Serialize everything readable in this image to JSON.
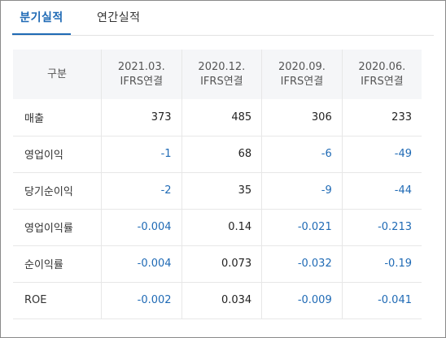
{
  "tabs": [
    {
      "label": "분기실적",
      "active": true
    },
    {
      "label": "연간실적",
      "active": false
    }
  ],
  "table": {
    "header_label": "구분",
    "columns": [
      {
        "period": "2021.03.",
        "basis": "IFRS연결"
      },
      {
        "period": "2020.12.",
        "basis": "IFRS연결"
      },
      {
        "period": "2020.09.",
        "basis": "IFRS연결"
      },
      {
        "period": "2020.06.",
        "basis": "IFRS연결"
      }
    ],
    "rows": [
      {
        "label": "매출",
        "values": [
          "373",
          "485",
          "306",
          "233"
        ]
      },
      {
        "label": "영업이익",
        "values": [
          "-1",
          "68",
          "-6",
          "-49"
        ]
      },
      {
        "label": "당기순이익",
        "values": [
          "-2",
          "35",
          "-9",
          "-44"
        ]
      },
      {
        "label": "영업이익률",
        "values": [
          "-0.004",
          "0.14",
          "-0.021",
          "-0.213"
        ]
      },
      {
        "label": "순이익률",
        "values": [
          "-0.004",
          "0.073",
          "-0.032",
          "-0.19"
        ]
      },
      {
        "label": "ROE",
        "values": [
          "-0.002",
          "0.034",
          "-0.009",
          "-0.041"
        ]
      }
    ]
  },
  "colors": {
    "accent": "#1f6ab5",
    "negative": "#1f6ab5",
    "header_bg": "#f5f6f8"
  }
}
